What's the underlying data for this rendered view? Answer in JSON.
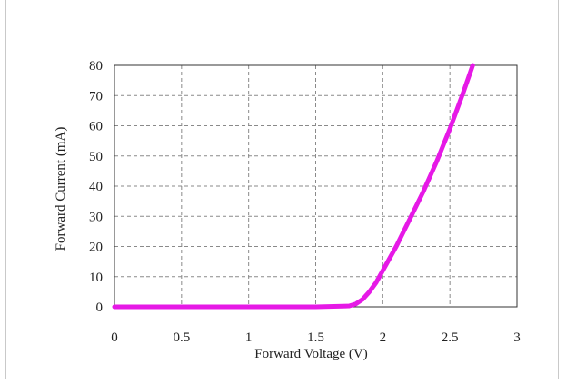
{
  "chart_data": {
    "type": "line",
    "xlabel": "Forward Voltage (V)",
    "ylabel": "Forward Current (mA)",
    "xlim": [
      0,
      3
    ],
    "ylim": [
      0,
      80
    ],
    "x_ticks": [
      "0",
      "0.5",
      "1",
      "1.5",
      "2",
      "2.5",
      "3"
    ],
    "y_ticks": [
      "0",
      "10",
      "20",
      "30",
      "40",
      "50",
      "60",
      "70",
      "80"
    ],
    "grid": true,
    "grid_style": "dashed",
    "series": [
      {
        "color": "#e619e6",
        "x": [
          0,
          0.5,
          1.0,
          1.5,
          1.75,
          1.8,
          1.85,
          1.9,
          1.95,
          2.0,
          2.1,
          2.2,
          2.3,
          2.4,
          2.5,
          2.6,
          2.67
        ],
        "y": [
          0,
          0,
          0,
          0,
          0.3,
          1,
          2.5,
          5,
          8,
          12,
          20,
          29,
          38,
          48,
          59,
          71,
          80
        ]
      }
    ]
  },
  "colors": {
    "line": "#e619e6",
    "grid": "#8a8a8a",
    "axis": "#333333",
    "frame_border": "#c9c9c9"
  }
}
